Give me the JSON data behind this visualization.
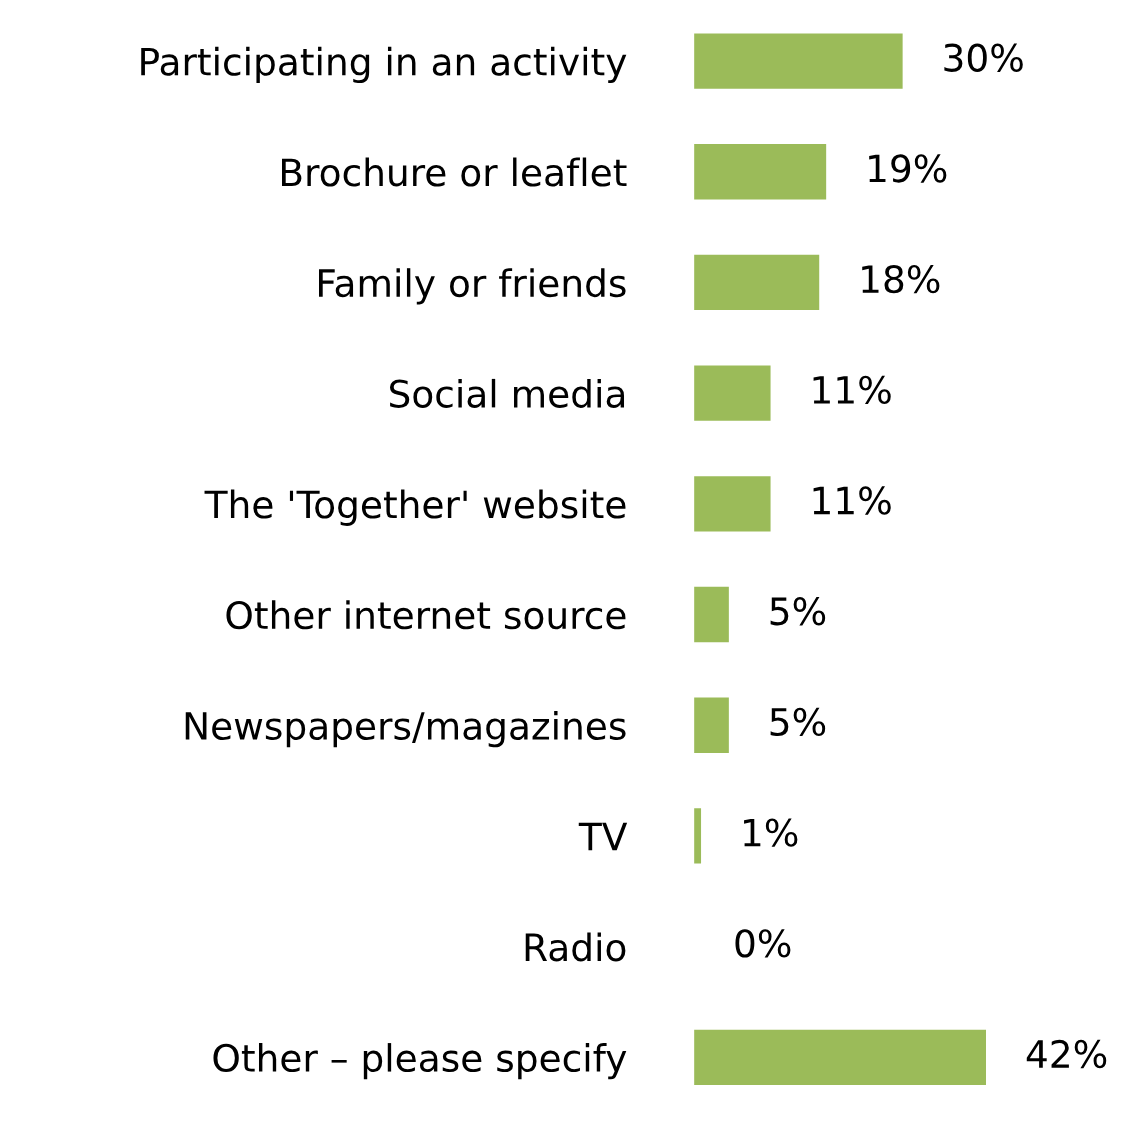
{
  "chart_data": {
    "type": "bar",
    "orientation": "horizontal",
    "categories": [
      "Participating in an activity",
      "Brochure or leaflet",
      "Family or friends",
      "Social media",
      "The 'Together' website",
      "Other internet source",
      "Newspapers/magazines",
      "TV",
      "Radio",
      "Other – please specify"
    ],
    "values": [
      30,
      19,
      18,
      11,
      11,
      5,
      5,
      1,
      0,
      42
    ],
    "value_labels": [
      "30%",
      "19%",
      "18%",
      "11%",
      "11%",
      "5%",
      "5%",
      "1%",
      "0%",
      "42%"
    ],
    "color": "#9bbb59",
    "tick_labels": "y",
    "grid": false,
    "legend": false
  }
}
